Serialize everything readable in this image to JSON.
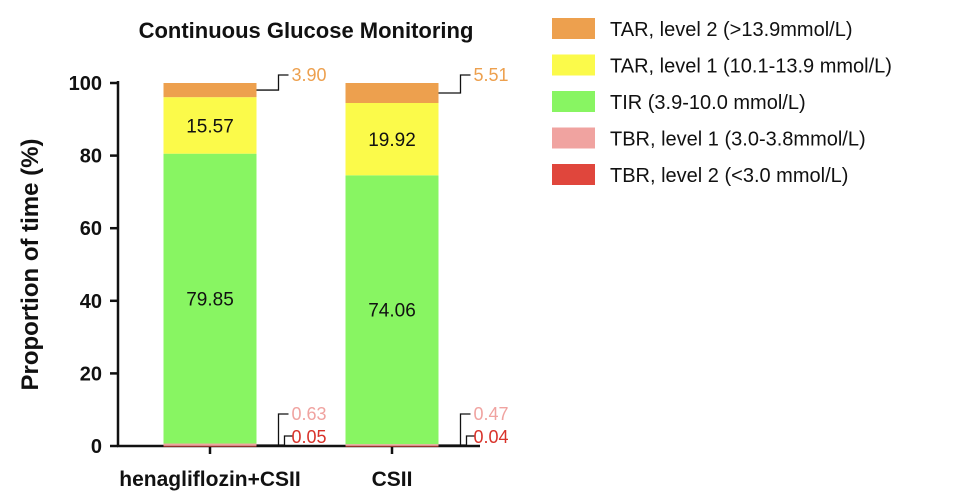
{
  "chart_data": {
    "type": "bar",
    "stacked": true,
    "title": "Continuous Glucose Monitoring",
    "ylabel": "Proportion of time (%)",
    "xlabel": "",
    "ylim": [
      0,
      100
    ],
    "yticks": [
      "0",
      "20",
      "40",
      "60",
      "80",
      "100"
    ],
    "categories": [
      "henagliflozin+CSII",
      "CSII"
    ],
    "series": [
      {
        "name": "TBR, level 2 (<3.0 mmol/L)",
        "color": "#e0463c",
        "values": [
          0.05,
          0.04
        ],
        "labels": [
          "0.05",
          "0.04"
        ]
      },
      {
        "name": "TBR, level 1 (3.0-3.8mmol/L)",
        "color": "#f0a3a0",
        "values": [
          0.63,
          0.47
        ],
        "labels": [
          "0.63",
          "0.47"
        ]
      },
      {
        "name": "TIR (3.9-10.0 mmol/L)",
        "color": "#88f562",
        "values": [
          79.85,
          74.06
        ],
        "labels": [
          "79.85",
          "74.06"
        ]
      },
      {
        "name": "TAR, level 1 (10.1-13.9 mmol/L)",
        "color": "#fbfa4a",
        "values": [
          15.57,
          19.92
        ],
        "labels": [
          "15.57",
          "19.92"
        ]
      },
      {
        "name": "TAR, level 2 (>13.9mmol/L)",
        "color": "#eda04e",
        "values": [
          3.9,
          5.51
        ],
        "labels": [
          "3.90",
          "5.51"
        ]
      }
    ],
    "legend_order": [
      4,
      3,
      2,
      1,
      0
    ],
    "legend_position": "right",
    "grid": false
  }
}
